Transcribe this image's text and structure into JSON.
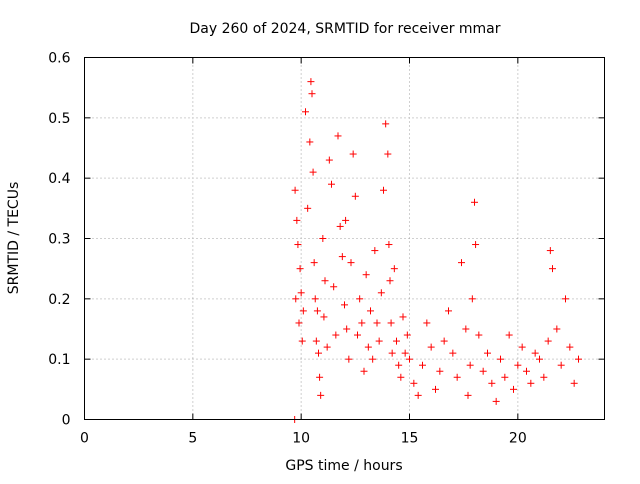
{
  "chart_data": {
    "type": "scatter",
    "title": "Day 260 of 2024, SRMTID for receiver mmar",
    "xlabel": "GPS time / hours",
    "ylabel": "SRMTID / TECUs",
    "xlim": [
      0,
      24
    ],
    "ylim": [
      0,
      0.6
    ],
    "x_ticks": [
      0,
      5,
      10,
      15,
      20
    ],
    "y_ticks": [
      0,
      0.1,
      0.2,
      0.3,
      0.4,
      0.5,
      0.6
    ],
    "x_tick_labels": [
      "0",
      "5",
      "10",
      "15",
      "20"
    ],
    "y_tick_labels": [
      "0",
      "0.1",
      "0.2",
      "0.3",
      "0.4",
      "0.5",
      "0.6"
    ],
    "grid": true,
    "series": [
      {
        "name": "SRMTID",
        "marker": "plus",
        "color": "#ff0000",
        "x": [
          9.7,
          9.72,
          9.75,
          9.8,
          9.85,
          9.9,
          9.95,
          10.0,
          10.05,
          10.1,
          10.2,
          10.3,
          10.4,
          10.45,
          10.5,
          10.55,
          10.6,
          10.65,
          10.7,
          10.75,
          10.8,
          10.85,
          10.9,
          11.0,
          11.05,
          11.1,
          11.2,
          11.3,
          11.4,
          11.5,
          11.6,
          11.7,
          11.8,
          11.9,
          12.0,
          12.05,
          12.1,
          12.2,
          12.3,
          12.4,
          12.5,
          12.6,
          12.7,
          12.8,
          12.9,
          13.0,
          13.1,
          13.2,
          13.3,
          13.4,
          13.5,
          13.6,
          13.7,
          13.8,
          13.9,
          14.0,
          14.05,
          14.1,
          14.15,
          14.2,
          14.3,
          14.4,
          14.5,
          14.6,
          14.7,
          14.8,
          14.9,
          15.0,
          15.2,
          15.4,
          15.6,
          15.8,
          16.0,
          16.2,
          16.4,
          16.6,
          16.8,
          17.0,
          17.2,
          17.4,
          17.6,
          17.7,
          17.8,
          17.9,
          18.0,
          18.05,
          18.2,
          18.4,
          18.6,
          18.8,
          19.0,
          19.2,
          19.4,
          19.6,
          19.8,
          20.0,
          20.2,
          20.4,
          20.6,
          20.8,
          21.0,
          21.2,
          21.4,
          21.5,
          21.6,
          21.8,
          22.0,
          22.2,
          22.4,
          22.6,
          22.8
        ],
        "y": [
          0.0,
          0.38,
          0.2,
          0.33,
          0.29,
          0.16,
          0.25,
          0.21,
          0.13,
          0.18,
          0.51,
          0.35,
          0.46,
          0.56,
          0.54,
          0.41,
          0.26,
          0.2,
          0.13,
          0.18,
          0.11,
          0.07,
          0.04,
          0.3,
          0.17,
          0.23,
          0.12,
          0.43,
          0.39,
          0.22,
          0.14,
          0.47,
          0.32,
          0.27,
          0.19,
          0.33,
          0.15,
          0.1,
          0.26,
          0.44,
          0.37,
          0.14,
          0.2,
          0.16,
          0.08,
          0.24,
          0.12,
          0.18,
          0.1,
          0.28,
          0.16,
          0.13,
          0.21,
          0.38,
          0.49,
          0.44,
          0.29,
          0.23,
          0.16,
          0.11,
          0.25,
          0.13,
          0.09,
          0.07,
          0.17,
          0.11,
          0.14,
          0.1,
          0.06,
          0.04,
          0.09,
          0.16,
          0.12,
          0.05,
          0.08,
          0.13,
          0.18,
          0.11,
          0.07,
          0.26,
          0.15,
          0.04,
          0.09,
          0.2,
          0.36,
          0.29,
          0.14,
          0.08,
          0.11,
          0.06,
          0.03,
          0.1,
          0.07,
          0.14,
          0.05,
          0.09,
          0.12,
          0.08,
          0.06,
          0.11,
          0.1,
          0.07,
          0.13,
          0.28,
          0.25,
          0.15,
          0.09,
          0.2,
          0.12,
          0.06,
          0.1
        ]
      }
    ]
  }
}
